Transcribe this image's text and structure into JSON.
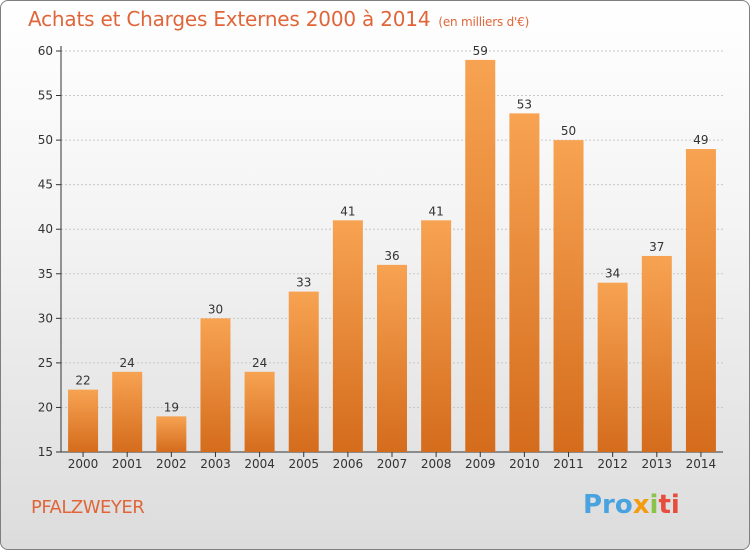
{
  "header": {
    "title": "Achats et Charges Externes 2000 à 2014",
    "unit": "(en milliers d'€)"
  },
  "footer": {
    "place": "PFALZWEYER",
    "logo_parts": [
      "Pro",
      "x",
      "i",
      "ti"
    ]
  },
  "colors": {
    "bar_light": "#f7a352",
    "bar_dark": "#d46c1c",
    "text_accent": "#e0663a",
    "grid": "#c8c8c8"
  },
  "chart_data": {
    "type": "bar",
    "categories": [
      "2000",
      "2001",
      "2002",
      "2003",
      "2004",
      "2005",
      "2006",
      "2007",
      "2008",
      "2009",
      "2010",
      "2011",
      "2012",
      "2013",
      "2014"
    ],
    "values": [
      22,
      24,
      19,
      30,
      24,
      33,
      41,
      36,
      41,
      59,
      53,
      50,
      34,
      37,
      49
    ],
    "title": "Achats et Charges Externes 2000 à 2014",
    "ylim": [
      15,
      60
    ],
    "yticks": [
      15,
      20,
      25,
      30,
      35,
      40,
      45,
      50,
      55,
      60
    ],
    "grid": true,
    "data_labels": true
  }
}
